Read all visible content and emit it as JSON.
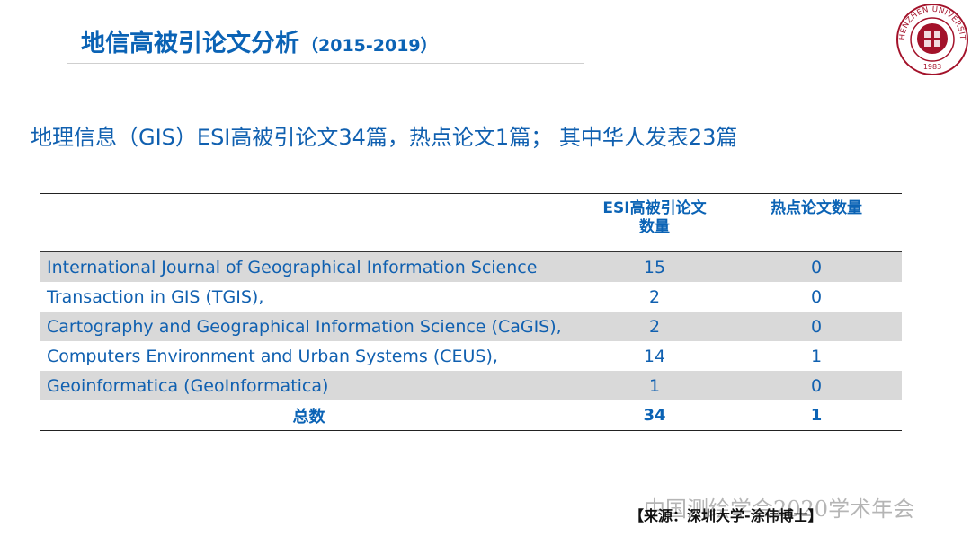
{
  "header": {
    "title": "地信高被引论文分析",
    "years": "（2015-2019）",
    "logo_text": "SHENZHEN UNIVERSITY",
    "logo_year": "1983"
  },
  "summary": "地理信息（GIS）ESI高被引论文34篇，热点论文1篇； 其中华人发表23篇",
  "table": {
    "col_journal": "",
    "col_esi": "ESI高被引论文数量",
    "col_hot": "热点论文数量",
    "rows": [
      {
        "journal": "International Journal of Geographical Information Science",
        "esi": "15",
        "hot": "0"
      },
      {
        "journal": "Transaction in GIS (TGIS),",
        "esi": "2",
        "hot": "0"
      },
      {
        "journal": "Cartography and Geographical Information Science (CaGIS),",
        "esi": "2",
        "hot": "0"
      },
      {
        "journal": "Computers Environment and Urban Systems (CEUS),",
        "esi": "14",
        "hot": "1"
      },
      {
        "journal": "Geoinformatica (GeoInformatica)",
        "esi": "1",
        "hot": "0"
      }
    ],
    "total": {
      "label": "总数",
      "esi": "34",
      "hot": "1"
    }
  },
  "source": "【来源：深圳大学-涂伟博士】",
  "watermark": "中国测绘学会2020学术年会",
  "colors": {
    "accent": "#0b63b5",
    "logo": "#a3122a",
    "row_shade": "#d9d9d9"
  }
}
